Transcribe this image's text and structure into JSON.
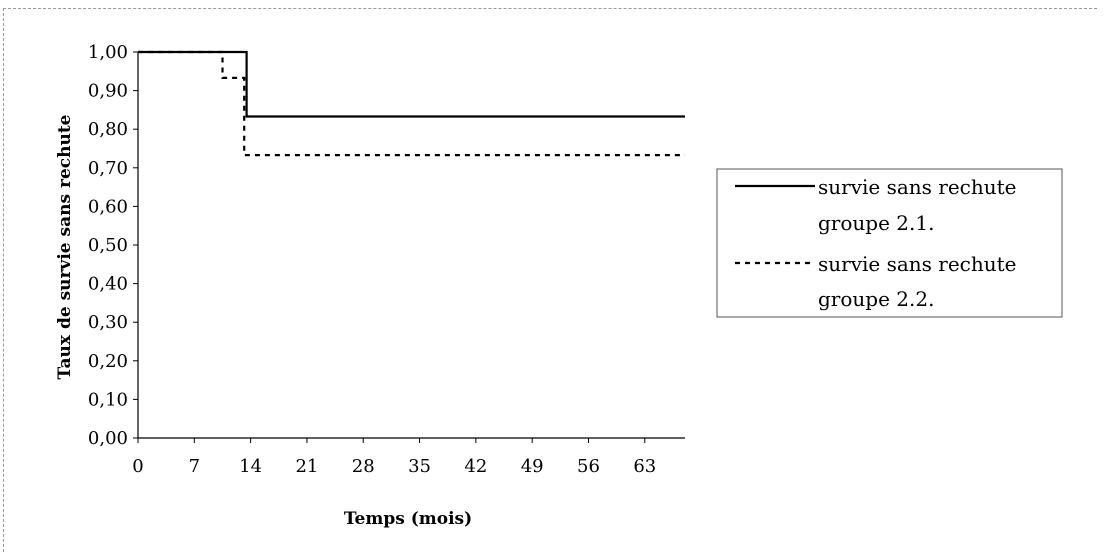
{
  "chart_data": {
    "type": "line",
    "step": true,
    "xlabel": "Temps (mois)",
    "ylabel": "Taux de survie sans rechute",
    "xlim": [
      0,
      68
    ],
    "ylim": [
      0,
      1
    ],
    "x_ticks": [
      0,
      7,
      14,
      21,
      28,
      35,
      42,
      49,
      56,
      63
    ],
    "y_ticks": [
      0.0,
      0.1,
      0.2,
      0.3,
      0.4,
      0.5,
      0.6,
      0.7,
      0.8,
      0.9,
      1.0
    ],
    "y_tick_labels": [
      "0,00",
      "0,10",
      "0,20",
      "0,30",
      "0,40",
      "0,50",
      "0,60",
      "0,70",
      "0,80",
      "0,90",
      "1,00"
    ],
    "grid": false,
    "legend_position": "right",
    "series": [
      {
        "name": "survie sans rechute groupe 2.1.",
        "legend_lines": [
          "survie sans rechute",
          "groupe 2.1."
        ],
        "line_style": "solid",
        "color": "#000000",
        "points": [
          [
            0,
            1.0
          ],
          [
            13.5,
            1.0
          ],
          [
            13.5,
            0.833
          ],
          [
            68,
            0.833
          ]
        ]
      },
      {
        "name": "survie sans rechute groupe 2.2.",
        "legend_lines": [
          "survie sans rechute",
          "groupe 2.2."
        ],
        "line_style": "dotted",
        "color": "#000000",
        "points": [
          [
            0,
            1.0
          ],
          [
            10.5,
            1.0
          ],
          [
            10.5,
            0.933
          ],
          [
            13.2,
            0.933
          ],
          [
            13.2,
            0.733
          ],
          [
            68,
            0.733
          ]
        ]
      }
    ]
  }
}
